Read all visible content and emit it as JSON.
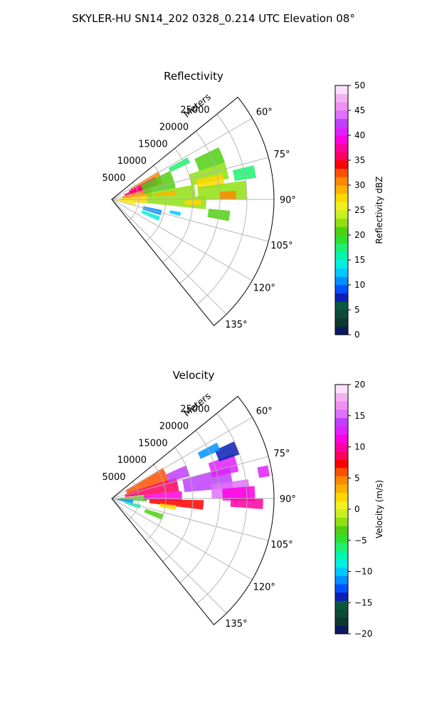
{
  "figure": {
    "title": "SKYLER-HU  SN14_202  0328_0.214 UTC Elevation 08°"
  },
  "chart_data": [
    {
      "type": "heatmap",
      "projection": "polar-sector",
      "title": "Reflectivity",
      "range_label": "Meters",
      "range_ticks": [
        5000,
        10000,
        15000,
        20000,
        25000
      ],
      "range_tick_labels": [
        "5000",
        "10000",
        "15000",
        "20000",
        "25000"
      ],
      "range_max": 30000,
      "azimuth_range": [
        51,
        141
      ],
      "azimuth_ticks": [
        60,
        75,
        90,
        105,
        120,
        135
      ],
      "azimuth_tick_labels": [
        "60°",
        "75°",
        "90°",
        "105°",
        "120°",
        "135°"
      ],
      "grid": true,
      "colorbar": {
        "label": "Reflectivity dBZ",
        "min": 0,
        "max": 50,
        "ticks": [
          0,
          5,
          10,
          15,
          20,
          25,
          30,
          35,
          40,
          45,
          50
        ],
        "tick_labels": [
          "0",
          "5",
          "10",
          "15",
          "20",
          "25",
          "30",
          "35",
          "40",
          "45",
          "50"
        ],
        "colors": [
          "#0b1a5e",
          "#0d3a2c",
          "#0c4a38",
          "#0b5a40",
          "#0a1fb4",
          "#0050ff",
          "#0090ff",
          "#00c8ff",
          "#00f0e0",
          "#00f5b0",
          "#20f070",
          "#30e030",
          "#50d010",
          "#90e010",
          "#c8f020",
          "#f0f020",
          "#ffd800",
          "#ffb000",
          "#ff8800",
          "#ff5000",
          "#ff0000",
          "#ff0060",
          "#ff00a0",
          "#ff00e0",
          "#e020ff",
          "#c040ff",
          "#e070ff",
          "#f090f0",
          "#f4b0f4",
          "#fce0fc"
        ]
      },
      "cells": [
        {
          "az": 66,
          "r": 4000,
          "dr": 6000,
          "daz": 14,
          "value": 31
        },
        {
          "az": 68,
          "r": 3500,
          "dr": 5500,
          "daz": 10,
          "value": 37
        },
        {
          "az": 72,
          "r": 2500,
          "dr": 5000,
          "daz": 10,
          "value": 35
        },
        {
          "az": 80,
          "r": 2000,
          "dr": 5500,
          "daz": 12,
          "value": 30
        },
        {
          "az": 90,
          "r": 1500,
          "dr": 5000,
          "daz": 14,
          "value": 27
        },
        {
          "az": 100,
          "r": 1000,
          "dr": 3500,
          "daz": 10,
          "value": 25
        },
        {
          "az": 72,
          "r": 6000,
          "dr": 6000,
          "daz": 16,
          "value": 20
        },
        {
          "az": 84,
          "r": 6500,
          "dr": 9000,
          "daz": 8,
          "value": 23
        },
        {
          "az": 84,
          "r": 8000,
          "dr": 4000,
          "daz": 4,
          "value": 29
        },
        {
          "az": 92,
          "r": 6500,
          "dr": 11000,
          "daz": 8,
          "value": 22
        },
        {
          "az": 92,
          "r": 13500,
          "dr": 3000,
          "daz": 4,
          "value": 28
        },
        {
          "az": 68,
          "r": 17000,
          "dr": 5000,
          "daz": 8,
          "value": 20
        },
        {
          "az": 76,
          "r": 15000,
          "dr": 7000,
          "daz": 8,
          "value": 22
        },
        {
          "az": 80,
          "r": 16000,
          "dr": 5000,
          "daz": 6,
          "value": 27
        },
        {
          "az": 86,
          "r": 16000,
          "dr": 9000,
          "daz": 8,
          "value": 23
        },
        {
          "az": 88,
          "r": 20000,
          "dr": 3000,
          "daz": 4,
          "value": 30
        },
        {
          "az": 79,
          "r": 23000,
          "dr": 4000,
          "daz": 5,
          "value": 18
        },
        {
          "az": 63,
          "r": 12000,
          "dr": 4000,
          "daz": 4,
          "value": 18
        },
        {
          "az": 98,
          "r": 18000,
          "dr": 4000,
          "daz": 5,
          "value": 21
        },
        {
          "az": 105,
          "r": 6000,
          "dr": 3500,
          "daz": 6,
          "value": 11
        },
        {
          "az": 112,
          "r": 6000,
          "dr": 3500,
          "daz": 5,
          "value": 14
        },
        {
          "az": 102,
          "r": 11000,
          "dr": 2000,
          "daz": 3,
          "value": 13
        }
      ]
    },
    {
      "type": "heatmap",
      "projection": "polar-sector",
      "title": "Velocity",
      "range_label": "Meters",
      "range_ticks": [
        5000,
        10000,
        15000,
        20000,
        25000
      ],
      "range_tick_labels": [
        "5000",
        "10000",
        "15000",
        "20000",
        "25000"
      ],
      "range_max": 30000,
      "azimuth_range": [
        51,
        141
      ],
      "azimuth_ticks": [
        60,
        75,
        90,
        105,
        120,
        135
      ],
      "azimuth_tick_labels": [
        "60°",
        "75°",
        "90°",
        "105°",
        "120°",
        "135°"
      ],
      "grid": true,
      "colorbar": {
        "label": "Velocity (m/s)",
        "min": -20,
        "max": 20,
        "ticks": [
          -20,
          -15,
          -10,
          -5,
          0,
          5,
          10,
          15,
          20
        ],
        "tick_labels": [
          "−20",
          "−15",
          "−10",
          "−5",
          "0",
          "5",
          "10",
          "15",
          "20"
        ],
        "colors": [
          "#0b1a5e",
          "#0d3a2c",
          "#0c4a38",
          "#0b5a40",
          "#0a1fb4",
          "#0050ff",
          "#0090ff",
          "#00c8ff",
          "#00f0e0",
          "#00f5b0",
          "#20f070",
          "#30e030",
          "#50d010",
          "#90e010",
          "#c8f020",
          "#f0f020",
          "#ffd800",
          "#ffb000",
          "#ff8800",
          "#ff5000",
          "#ff0000",
          "#ff0060",
          "#ff00a0",
          "#ff00e0",
          "#e020ff",
          "#c040ff",
          "#e070ff",
          "#f090f0",
          "#f4b0f4",
          "#fce0fc"
        ]
      },
      "cells": [
        {
          "az": 66,
          "r": 3000,
          "dr": 8000,
          "daz": 14,
          "value": 6
        },
        {
          "az": 78,
          "r": 2500,
          "dr": 10000,
          "daz": 12,
          "value": 8
        },
        {
          "az": 90,
          "r": 1500,
          "dr": 5000,
          "daz": 10,
          "value": -4
        },
        {
          "az": 98,
          "r": 1000,
          "dr": 3000,
          "daz": 10,
          "value": -11
        },
        {
          "az": 106,
          "r": 2500,
          "dr": 3000,
          "daz": 8,
          "value": -8
        },
        {
          "az": 88,
          "r": 6000,
          "dr": 7000,
          "daz": 8,
          "value": 11
        },
        {
          "az": 94,
          "r": 7000,
          "dr": 10000,
          "daz": 6,
          "value": 7
        },
        {
          "az": 98,
          "r": 9000,
          "dr": 3000,
          "daz": 4,
          "value": 2
        },
        {
          "az": 110,
          "r": 6500,
          "dr": 3500,
          "daz": 6,
          "value": -4
        },
        {
          "az": 70,
          "r": 11000,
          "dr": 4000,
          "daz": 8,
          "value": 14
        },
        {
          "az": 80,
          "r": 13500,
          "dr": 9000,
          "daz": 10,
          "value": 14
        },
        {
          "az": 86,
          "r": 18500,
          "dr": 7000,
          "daz": 8,
          "value": 15
        },
        {
          "az": 88,
          "r": 20500,
          "dr": 6000,
          "daz": 6,
          "value": 11
        },
        {
          "az": 92,
          "r": 22000,
          "dr": 6000,
          "daz": 4,
          "value": 10
        },
        {
          "az": 74,
          "r": 19000,
          "dr": 5000,
          "daz": 8,
          "value": 13
        },
        {
          "az": 68,
          "r": 21000,
          "dr": 4000,
          "daz": 6,
          "value": -14
        },
        {
          "az": 64,
          "r": 18000,
          "dr": 4000,
          "daz": 4,
          "value": -12
        },
        {
          "az": 80,
          "r": 27500,
          "dr": 2000,
          "daz": 4,
          "value": 12
        }
      ]
    }
  ]
}
